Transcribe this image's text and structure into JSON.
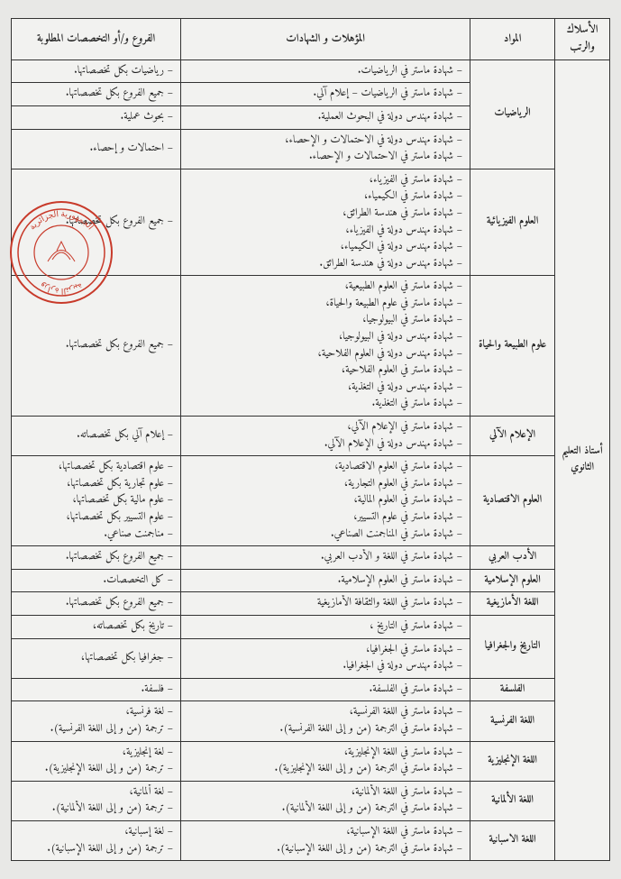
{
  "headers": {
    "rank": "الأسلاك والرتب",
    "subject": "المواد",
    "qualifications": "المؤهلات و الشهادات",
    "branches": "الفروع و/أو التخصصات المطلوبة"
  },
  "rank_label": "أستاذ التعليم الثانوي",
  "stamp": {
    "ring_color": "#c83a2a",
    "lines": [
      "الجمهورية الجزائرية",
      "وزارة التربية"
    ]
  },
  "rows": [
    {
      "subject": "الرياضيات",
      "subject_rowspan": 4,
      "qual": [
        "– شهادة ماستر في الرياضيات."
      ],
      "branch": [
        "– رياضيات بكل تخصصاتها."
      ]
    },
    {
      "qual": [
        "– شهادة ماستر في الرياضيات – إعلام آلي."
      ],
      "branch": [
        "– جميع الفروع بكل تخصصاتها."
      ]
    },
    {
      "qual": [
        "– شهادة مهندس دولة في البحوث العملية."
      ],
      "branch": [
        "– بحوث عملية."
      ]
    },
    {
      "qual": [
        "– شهادة مهندس دولة في الاحتمالات و الإحصاء،",
        "– شهادة ماستر في الاحتمالات و الإحصاء."
      ],
      "branch": [
        "– احتمالات و إحصاء."
      ]
    },
    {
      "subject": "العلوم الفيزيائية",
      "qual": [
        "– شهادة ماستر في الفيزياء،",
        "– شهادة ماستر في الكيمياء،",
        "– شهادة ماستر في هندسة الطرائق،",
        "– شهادة مهندس دولة في الفيزياء،",
        "– شهادة مهندس دولة في الكيمياء،",
        "– شهادة مهندس دولة في هندسة الطرائق."
      ],
      "branch": [
        "– جميع الفروع بكل تخصصاتها."
      ]
    },
    {
      "subject": "علوم الطبيعة والحياة",
      "qual": [
        "– شهادة ماستر في العلوم الطبيعية،",
        "– شهادة ماستر في علوم الطبيعة والحياة،",
        "– شهادة ماستر في البيولوجيا،",
        "– شهادة مهندس دولة في البيولوجيا،",
        "– شهادة مهندس دولة في العلوم الفلاحية،",
        "– شهادة ماستر في العلوم الفلاحية،",
        "– شهادة مهندس دولة في التغذية،",
        "– شهادة ماستر في التغذية."
      ],
      "branch": [
        "– جميع الفروع بكل تخصصاتها."
      ]
    },
    {
      "subject": "الإعلام الآلي",
      "qual": [
        "– شهادة ماستر في الإعلام الآلي،",
        "– شهادة مهندس دولة في الإعلام الآلي."
      ],
      "branch": [
        "– إعلام آلي بكل تخصصاته."
      ]
    },
    {
      "subject": "العلوم الاقتصادية",
      "qual": [
        "– شهادة ماستر في العلوم الاقتصادية،",
        "– شهادة ماستر في العلوم التجارية،",
        "– شهادة ماستر في العلوم المالية،",
        "– شهادة ماستر في علوم التسيير،",
        "– شهادة ماستر في المناجمنت الصناعي."
      ],
      "branch": [
        "– علوم اقتصادية بكل تخصصاتها،",
        "– علوم تجارية بكل تخصصاتها،",
        "– علوم مالية بكل تخصصاتها،",
        "– علوم التسيير بكل تخصصاتها،",
        "– مناجمنت صناعي."
      ]
    },
    {
      "subject": "الأدب العربي",
      "qual": [
        "– شهادة ماستر في اللغة و الأدب العربي."
      ],
      "branch": [
        "– جميع الفروع بكل تخصصاتها."
      ]
    },
    {
      "subject": "العلوم الإسلامية",
      "qual": [
        "– شهادة ماستر في العلوم الإسلامية."
      ],
      "branch": [
        "– كل التخصصات."
      ]
    },
    {
      "subject": "اللغة الأمازيغية",
      "qual": [
        "– شهادة ماستر في اللغة والثقافة الأمازيغية"
      ],
      "branch": [
        "– جميع الفروع بكل تخصصاتها."
      ]
    },
    {
      "subject": "التاريخ والجغرافيا",
      "subject_rowspan": 2,
      "qual": [
        "– شهادة ماستر في التاريخ ،"
      ],
      "branch": [
        "– تاريخ بكل تخصصاته،"
      ]
    },
    {
      "qual": [
        "– شهادة ماستر في الجغرافيا،",
        "– شهادة مهندس دولة في الجغرافيا."
      ],
      "branch": [
        "– جغرافيا بكل تخصصاتها،"
      ]
    },
    {
      "subject": "الفلسفة",
      "qual": [
        "– شهادة ماستر في الفلسفة."
      ],
      "branch": [
        "– فلسفة."
      ]
    },
    {
      "subject": "اللغة الفرنسية",
      "qual": [
        "– شهادة ماستر في اللغة الفرنسية،",
        "– شهادة ماستر في الترجمة (من و إلى اللغة الفرنسية)."
      ],
      "branch": [
        "– لغة فرنسية،",
        "– ترجمة (من و إلى اللغة الفرنسية)."
      ]
    },
    {
      "subject": "اللغة الإنجليزية",
      "qual": [
        "– شهادة ماستر في اللغة الإنجليزية،",
        "– شهادة ماستر في الترجمة (من و إلى اللغة الإنجليزية)."
      ],
      "branch": [
        "– لغة إنجليزية،",
        "– ترجمة (من و إلى اللغة الإنجليزية)."
      ]
    },
    {
      "subject": "اللغة الألمانية",
      "qual": [
        "– شهادة ماستر في اللغة الألمانية،",
        "– شهادة ماستر في الترجمة (من و إلى اللغة الألمانية)."
      ],
      "branch": [
        "– لغة ألمانية،",
        "– ترجمة (من و إلى اللغة الألمانية)."
      ]
    },
    {
      "subject": "اللغة الاسبانية",
      "qual": [
        "– شهادة ماستر في اللغة الإسبانية،",
        "– شهادة ماستر في الترجمة (من و إلى اللغة الإسبانية)."
      ],
      "branch": [
        "– لغة إسبانية،",
        "– ترجمة (من و إلى اللغة الإسبانية)."
      ]
    }
  ]
}
